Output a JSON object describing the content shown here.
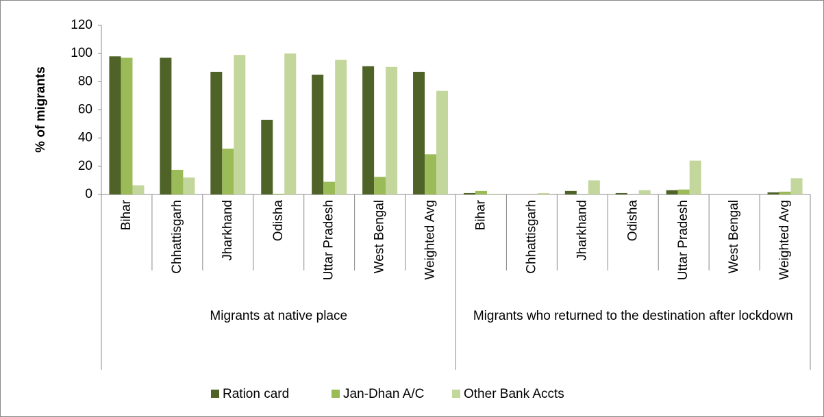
{
  "chart_data": {
    "type": "bar",
    "y_label": "% of migrants",
    "groups": [
      {
        "name": "Migrants at native place",
        "categories": [
          "Bihar",
          "Chhattisgarh",
          "Jharkhand",
          "Odisha",
          "Uttar Pradesh",
          "West Bengal",
          "Weighted Avg"
        ]
      },
      {
        "name": "Migrants who returned to the destination after lockdown",
        "categories": [
          "Bihar",
          "Chhattisgarh",
          "Jharkhand",
          "Odisha",
          "Uttar Pradesh",
          "West Bengal",
          "Weighted Avg"
        ]
      }
    ],
    "series": [
      {
        "name": "Ration card",
        "color": "#4f6228",
        "values": [
          98,
          97,
          87,
          53,
          85,
          91,
          87,
          1,
          0,
          2.5,
          1,
          3,
          0,
          1.5
        ]
      },
      {
        "name": "Jan-Dhan A/C",
        "color": "#9bbb59",
        "values": [
          97,
          17.5,
          32.5,
          0.5,
          9,
          12.5,
          28.5,
          2.5,
          0,
          0,
          0,
          3.5,
          0,
          2
        ]
      },
      {
        "name": "Other Bank Accts",
        "color": "#c3d69b",
        "values": [
          6.5,
          12,
          99,
          100,
          95.5,
          90.5,
          73.5,
          0.5,
          1,
          10,
          3,
          24,
          0,
          11.5
        ]
      }
    ],
    "ylim": [
      0,
      120
    ],
    "yticks": [
      0,
      20,
      40,
      60,
      80,
      100,
      120
    ],
    "grid": false,
    "legend": "bottom"
  }
}
